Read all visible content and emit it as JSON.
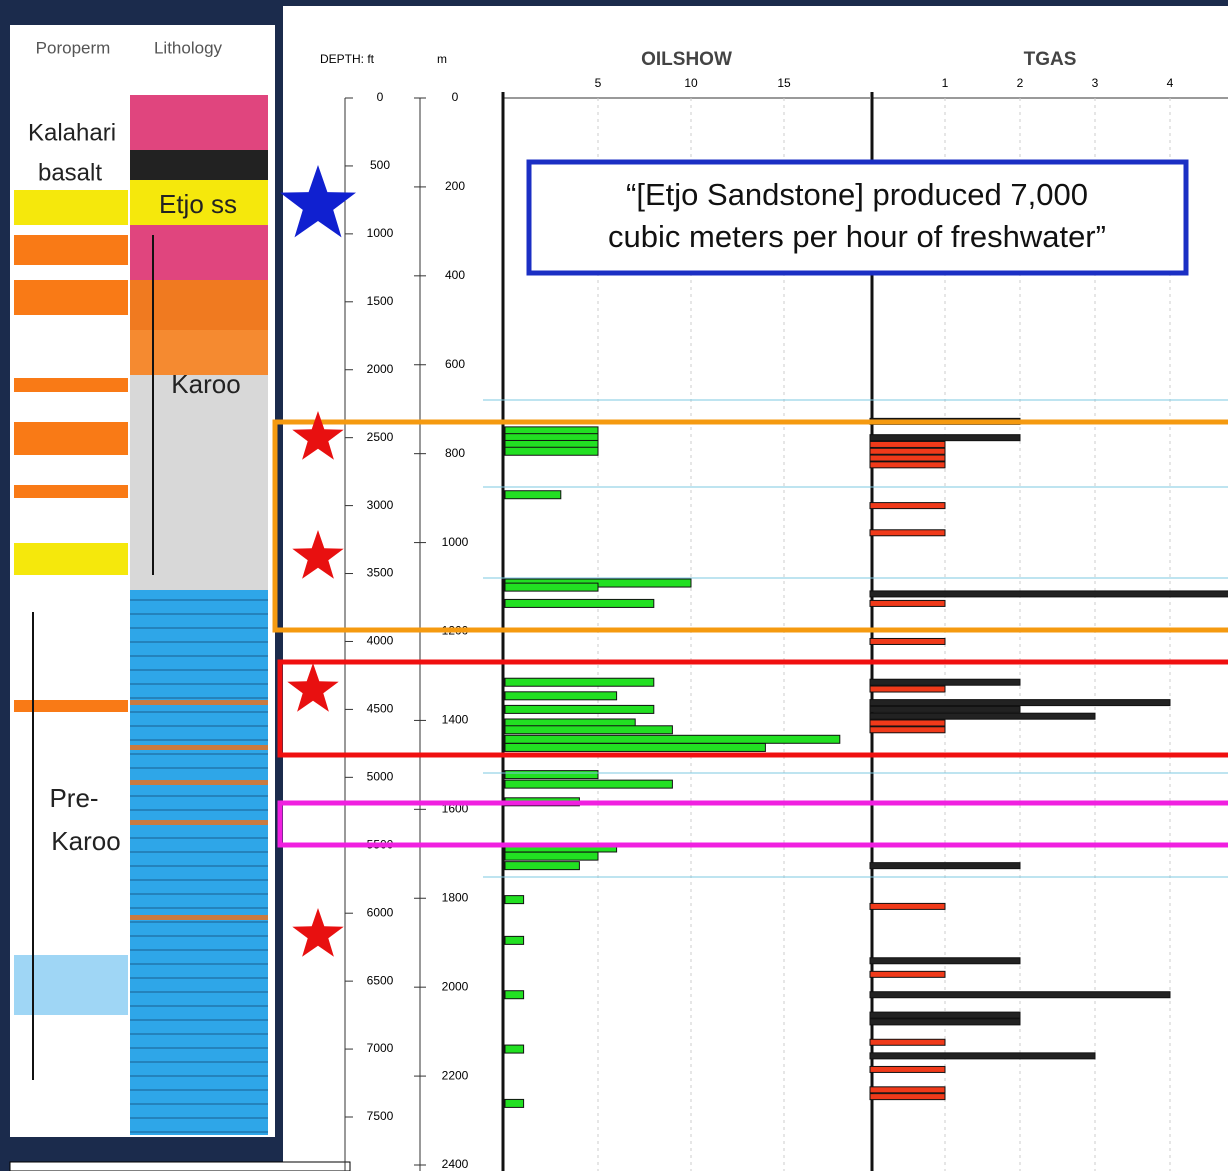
{
  "left_panel": {
    "headers": [
      "Poroperm",
      "Lithology"
    ],
    "kalahari": "Kalahari",
    "basalt": "basalt",
    "etjo": "Etjo ss",
    "karoo": "Karoo",
    "pre_karoo_1": "Pre-",
    "pre_karoo_2": "Karoo"
  },
  "log": {
    "depth_label": "DEPTH: ft",
    "m_label": "m",
    "ft_ticks": [
      0,
      500,
      1000,
      1500,
      2000,
      2500,
      3000,
      3500,
      4000,
      4500,
      5000,
      5500,
      6000,
      6500,
      7000,
      7500
    ],
    "m_ticks": [
      0,
      200,
      400,
      600,
      800,
      1000,
      1200,
      1400,
      1600,
      1800,
      2000,
      2200,
      2400
    ],
    "oilshow": {
      "title": "OILSHOW",
      "ticks": [
        5,
        10,
        15
      ],
      "depth_ft": [
        2450,
        2500,
        2550,
        2600,
        2920,
        3570,
        3600,
        3720,
        4300,
        4400,
        4500,
        4600,
        4650,
        4720,
        4780,
        4980,
        5050,
        5180,
        5520,
        5580,
        5650,
        5900,
        6200,
        6600,
        7000,
        7400
      ],
      "values": [
        5,
        5,
        5,
        5,
        3,
        10,
        5,
        8,
        8,
        6,
        8,
        7,
        9,
        18,
        14,
        5,
        9,
        4,
        6,
        5,
        4,
        1,
        1,
        1,
        1,
        1
      ]
    },
    "tgas": {
      "title": "TGAS",
      "ticks": [
        1,
        2,
        3,
        4
      ],
      "depth_ft": [
        2380,
        2500,
        2550,
        2600,
        2650,
        2700,
        3000,
        3200,
        3650,
        3720,
        4000,
        4300,
        4350,
        4450,
        4500,
        4550,
        4600,
        4650,
        5650,
        5950,
        6350,
        6450,
        6600,
        6750,
        6800,
        6950,
        7050,
        7150,
        7300,
        7350
      ],
      "values": [
        2,
        2,
        1,
        1,
        1,
        1,
        1,
        1,
        5,
        1,
        1,
        2,
        1,
        4,
        2,
        3,
        1,
        1,
        2,
        1,
        2,
        1,
        4,
        2,
        2,
        1,
        3,
        1,
        1,
        1
      ]
    }
  },
  "callout": [
    "“[Etjo Sandstone] produced 7,000",
    "cubic meters per hour of freshwater”"
  ]
}
